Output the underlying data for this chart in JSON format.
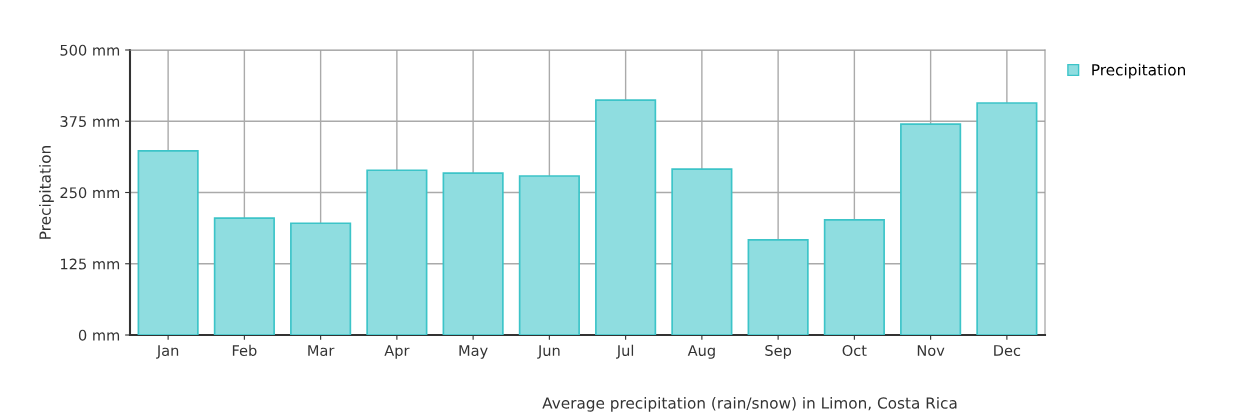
{
  "chart_data": {
    "type": "bar",
    "ylabel": "Precipitation",
    "categories": [
      "Jan",
      "Feb",
      "Mar",
      "Apr",
      "May",
      "Jun",
      "Jul",
      "Aug",
      "Sep",
      "Oct",
      "Nov",
      "Dec"
    ],
    "series": [
      {
        "name": "Precipitation",
        "color": "#8fdde0",
        "values": [
          323,
          205,
          196,
          289,
          284,
          279,
          412,
          291,
          167,
          202,
          370,
          407
        ]
      }
    ],
    "ylim": [
      0,
      500
    ],
    "yticks": [
      {
        "value": 0,
        "label": "0 mm"
      },
      {
        "value": 125,
        "label": "125 mm"
      },
      {
        "value": 250,
        "label": "250 mm"
      },
      {
        "value": 375,
        "label": "375 mm"
      },
      {
        "value": 500,
        "label": "500 mm"
      }
    ],
    "grid": true,
    "legend": "top right",
    "annotations": [
      "Average precipitation (rain/snow) in Limon, Costa Rica"
    ]
  }
}
